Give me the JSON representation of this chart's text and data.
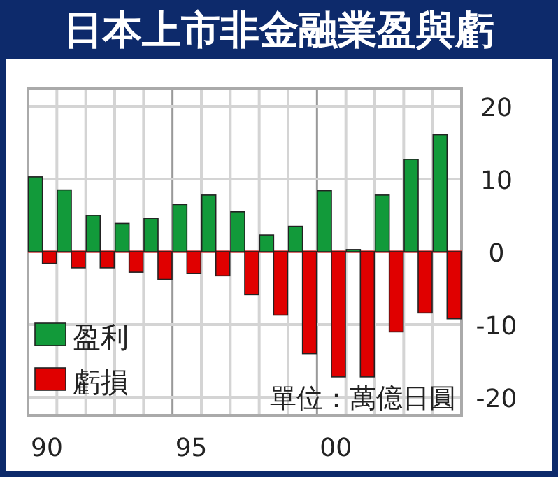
{
  "chart_data": {
    "type": "bar",
    "title": "日本上市非金融業盈與虧",
    "categories": [
      "90",
      null,
      null,
      null,
      null,
      "95",
      null,
      null,
      null,
      null,
      "00",
      null,
      null,
      null,
      null
    ],
    "series": [
      {
        "name": "盈利",
        "color": "#129a3a",
        "values": [
          10.3,
          8.5,
          5.0,
          3.9,
          4.6,
          6.5,
          7.8,
          5.5,
          2.3,
          3.5,
          8.4,
          0.3,
          7.8,
          12.7,
          16.1
        ]
      },
      {
        "name": "虧損",
        "color": "#e00000",
        "values": [
          -1.6,
          -2.2,
          -2.2,
          -2.8,
          -3.8,
          -3.0,
          -3.3,
          -5.9,
          -8.7,
          -14.0,
          -17.2,
          -17.2,
          -11.0,
          -8.4,
          -9.2
        ]
      }
    ],
    "ref_lines": [
      {
        "axis": "y",
        "value": 0,
        "color": "#dd0000"
      }
    ],
    "ylim": [
      -22.5,
      22.5
    ],
    "yticks": [
      -20,
      -10,
      0,
      10,
      20
    ],
    "grid": true,
    "legend": "bottom left",
    "annotations": [
      "單位：萬億日圓"
    ]
  }
}
